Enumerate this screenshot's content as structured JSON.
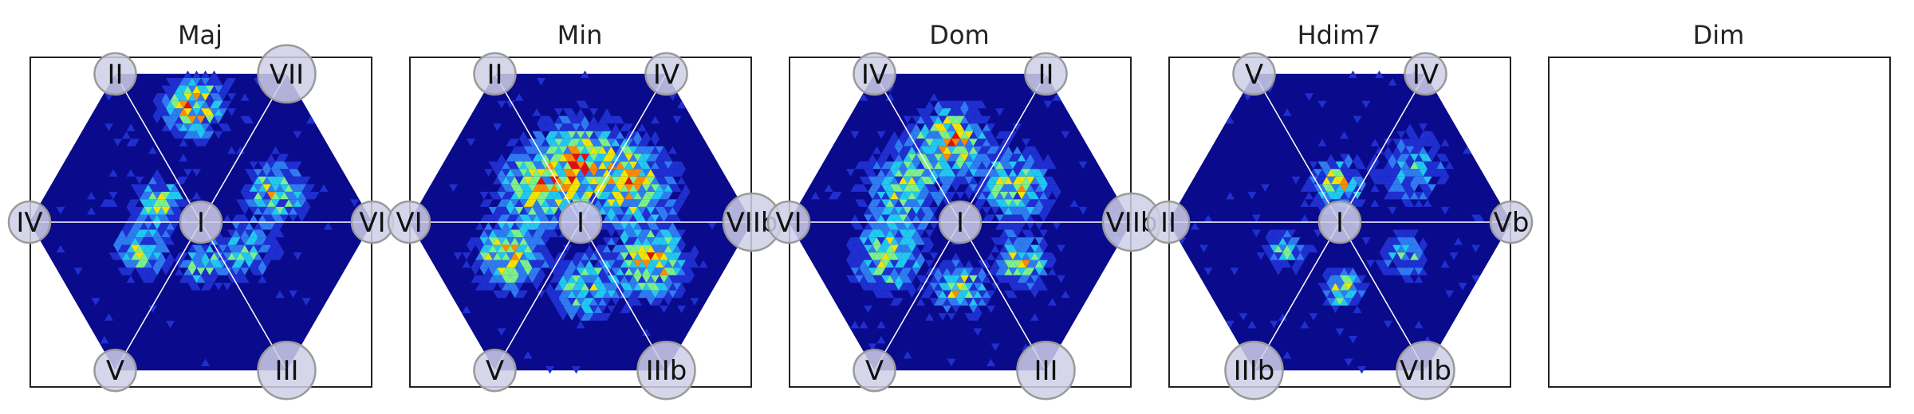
{
  "chart_data": {
    "type": "heatmap",
    "description_units": "triangular-lattice density map per chord quality; color ramp low→high",
    "colors": {
      "background": "#0a0a8c",
      "ramp": [
        "#1f2fd0",
        "#2f7cf0",
        "#22c8f0",
        "#7ef08a",
        "#f5e400",
        "#ff8a00",
        "#e01010"
      ],
      "node_fill": "#cfcfe6",
      "node_stroke": "#9a9a9a",
      "spoke": "#ffffff"
    },
    "panels": [
      {
        "title": "Maj",
        "empty": false,
        "center_label": "I",
        "outer_labels": [
          "II",
          "VII",
          "VI",
          "III",
          "V",
          "IV"
        ],
        "clusters": [
          {
            "sector": "top-right-upper",
            "u": 0.45,
            "v": 0.78,
            "intensity": 0.9,
            "spread": 0.12
          },
          {
            "sector": "top-right",
            "u": 0.62,
            "v": 0.55,
            "intensity": 0.85,
            "spread": 0.11
          },
          {
            "sector": "upper-left",
            "u": 0.4,
            "v": 0.3,
            "intensity": 0.7,
            "spread": 0.1
          },
          {
            "sector": "lower-right",
            "u": 0.55,
            "v": 0.35,
            "intensity": 0.55,
            "spread": 0.12
          },
          {
            "sector": "lower-left",
            "u": 0.55,
            "v": 0.45,
            "intensity": 0.65,
            "spread": 0.1
          },
          {
            "sector": "bottom",
            "u": 0.5,
            "v": 0.3,
            "intensity": 0.6,
            "spread": 0.08
          }
        ]
      },
      {
        "title": "Min",
        "empty": false,
        "center_label": "I",
        "outer_labels": [
          "II",
          "IV",
          "VIIb",
          "IIIb",
          "V",
          "VI"
        ],
        "clusters": [
          {
            "sector": "top",
            "u": 0.5,
            "v": 0.4,
            "intensity": 0.75,
            "spread": 0.18
          },
          {
            "sector": "upper-right",
            "u": 0.45,
            "v": 0.45,
            "intensity": 0.7,
            "spread": 0.16
          },
          {
            "sector": "lower-right",
            "u": 0.5,
            "v": 0.55,
            "intensity": 0.85,
            "spread": 0.14
          },
          {
            "sector": "lower-left",
            "u": 0.55,
            "v": 0.55,
            "intensity": 0.9,
            "spread": 0.12
          },
          {
            "sector": "bottom",
            "u": 0.45,
            "v": 0.45,
            "intensity": 0.7,
            "spread": 0.12
          },
          {
            "sector": "upper-left",
            "u": 0.55,
            "v": 0.4,
            "intensity": 0.6,
            "spread": 0.16
          }
        ]
      },
      {
        "title": "Dom",
        "empty": false,
        "center_label": "I",
        "outer_labels": [
          "IV",
          "II",
          "VIIb",
          "III",
          "V",
          "VI"
        ],
        "clusters": [
          {
            "sector": "top",
            "u": 0.4,
            "v": 0.55,
            "intensity": 0.85,
            "spread": 0.14
          },
          {
            "sector": "upper-right",
            "u": 0.45,
            "v": 0.45,
            "intensity": 0.75,
            "spread": 0.14
          },
          {
            "sector": "lower-right",
            "u": 0.55,
            "v": 0.5,
            "intensity": 0.8,
            "spread": 0.1
          },
          {
            "sector": "bottom",
            "u": 0.5,
            "v": 0.45,
            "intensity": 0.75,
            "spread": 0.1
          },
          {
            "sector": "lower-left",
            "u": 0.55,
            "v": 0.55,
            "intensity": 0.7,
            "spread": 0.14
          },
          {
            "sector": "upper-left",
            "u": 0.5,
            "v": 0.45,
            "intensity": 0.6,
            "spread": 0.16
          }
        ]
      },
      {
        "title": "Hdim7",
        "empty": false,
        "center_label": "I",
        "outer_labels": [
          "V",
          "IV",
          "Vb",
          "VIIb",
          "IIIb",
          "II"
        ],
        "clusters": [
          {
            "sector": "top",
            "u": 0.45,
            "v": 0.25,
            "intensity": 0.8,
            "spread": 0.1
          },
          {
            "sector": "upper-right",
            "u": 0.4,
            "v": 0.6,
            "intensity": 0.5,
            "spread": 0.14
          },
          {
            "sector": "lower-right",
            "u": 0.45,
            "v": 0.5,
            "intensity": 0.5,
            "spread": 0.1
          },
          {
            "sector": "bottom",
            "u": 0.45,
            "v": 0.45,
            "intensity": 0.7,
            "spread": 0.08
          },
          {
            "sector": "lower-left",
            "u": 0.55,
            "v": 0.4,
            "intensity": 0.55,
            "spread": 0.08
          }
        ]
      },
      {
        "title": "Dim",
        "empty": true,
        "center_label": "",
        "outer_labels": [],
        "clusters": []
      }
    ]
  }
}
